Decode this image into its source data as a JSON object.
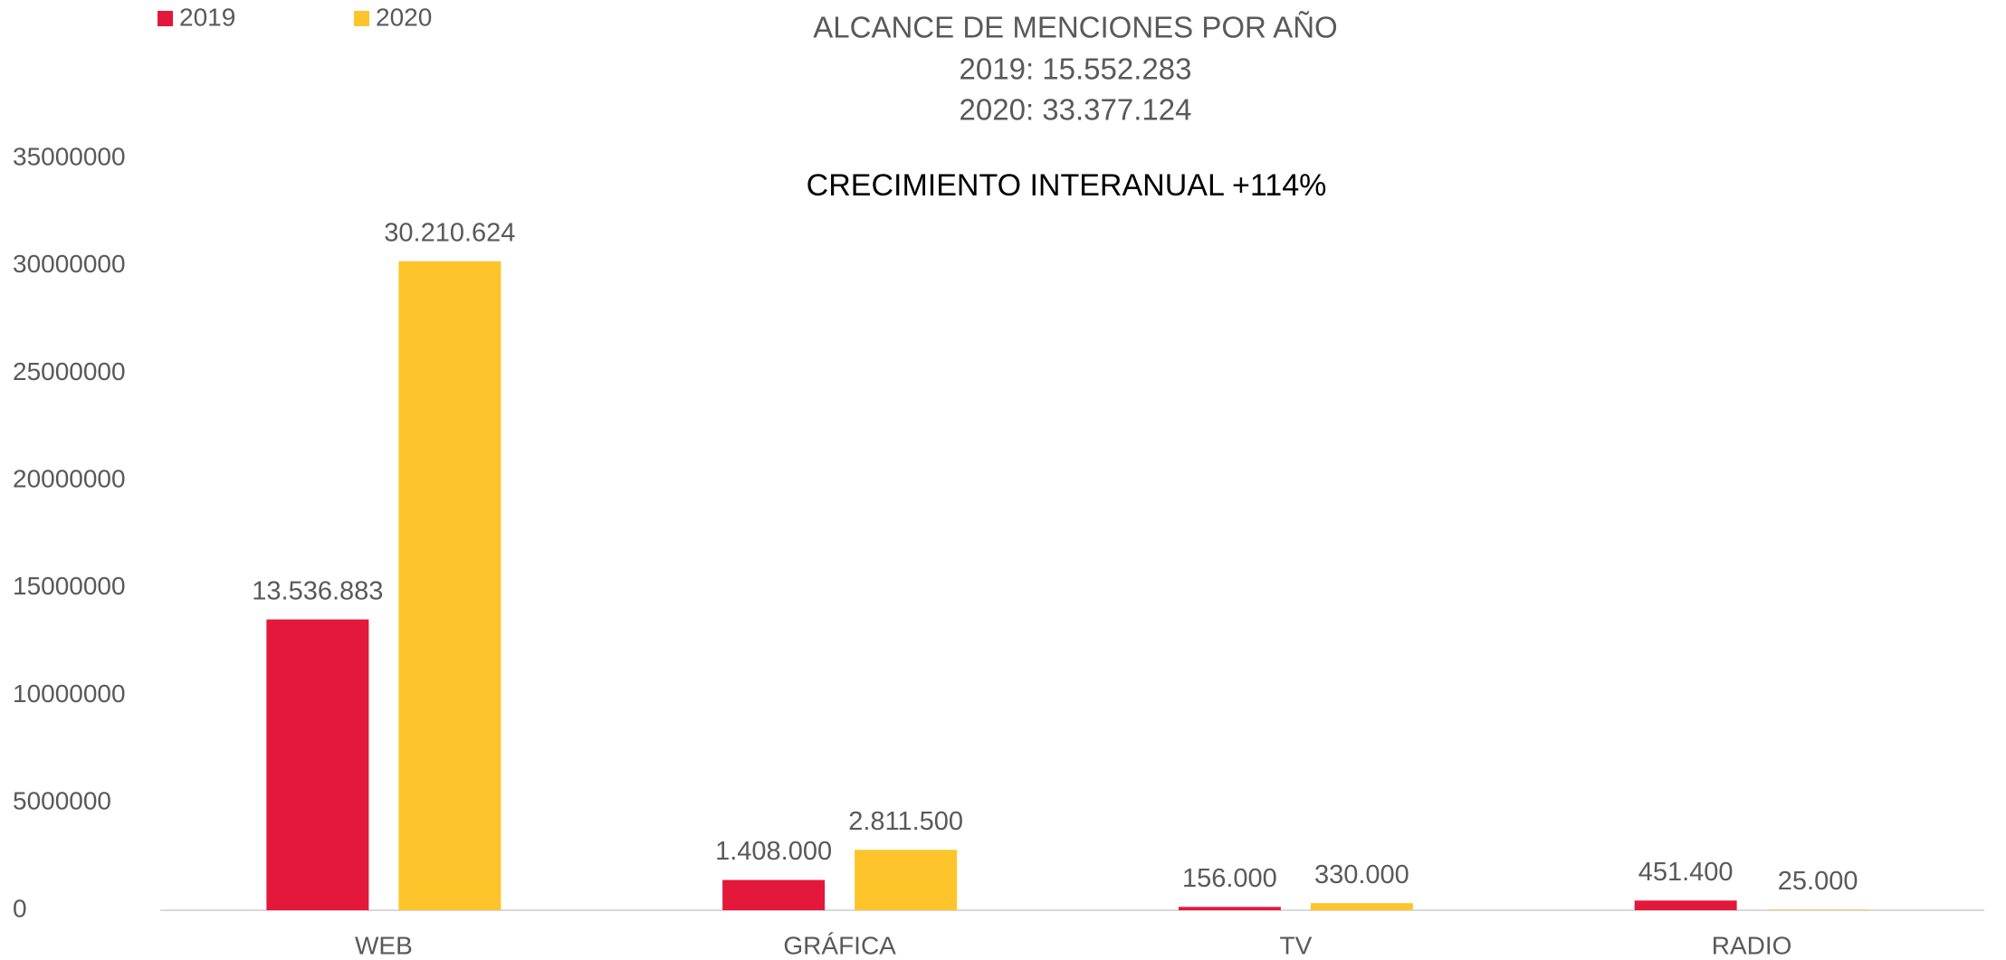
{
  "chart_data": {
    "type": "bar",
    "title": "ALCANCE DE MENCIONES POR AÑO",
    "subtitle": [
      "2019: 15.552.283",
      "2020: 33.377.124"
    ],
    "annotation": "CRECIMIENTO INTERANUAL +114%",
    "categories": [
      "WEB",
      "GRÁFICA",
      "TV",
      "RADIO"
    ],
    "series": [
      {
        "name": "2019",
        "color": "#e4183a",
        "values": [
          13536883,
          1408000,
          156000,
          451400
        ],
        "value_labels": [
          "13.536.883",
          "1.408.000",
          "156.000",
          "451.400"
        ]
      },
      {
        "name": "2020",
        "color": "#fdc52b",
        "values": [
          30210624,
          2811500,
          330000,
          25000
        ],
        "value_labels": [
          "30.210.624",
          "2.811.500",
          "330.000",
          "25.000"
        ]
      }
    ],
    "ylim": [
      0,
      35000000
    ],
    "yticks": [
      0,
      5000000,
      10000000,
      15000000,
      20000000,
      25000000,
      30000000,
      35000000
    ],
    "grid": false,
    "legend": "top-left"
  }
}
